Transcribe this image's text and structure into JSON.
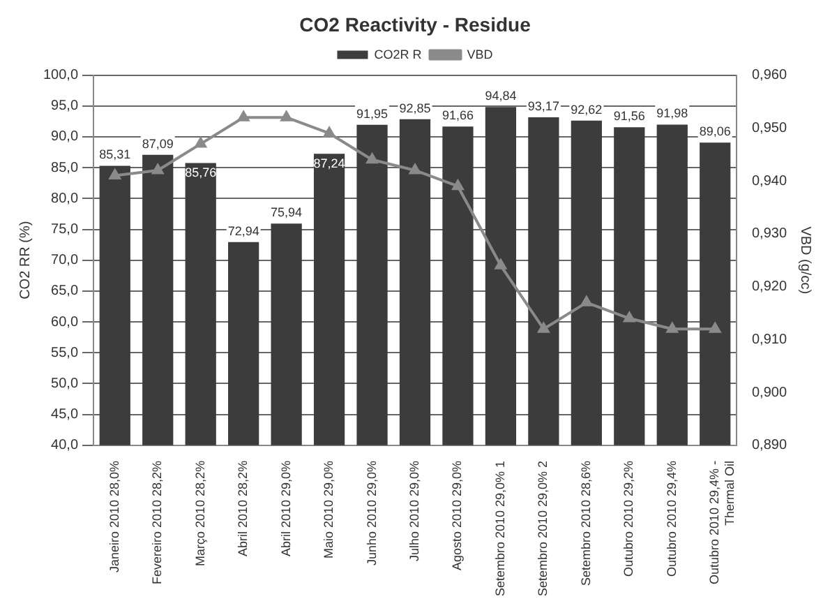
{
  "chart_data": {
    "type": "bar",
    "title": "CO2 Reactivity - Residue",
    "ylabel": "CO2 RR (%)",
    "y2label": "VBD (g/cc)",
    "categories": [
      "Janeiro 2010 28,0%",
      "Fevereiro 2010 28,2%",
      "Março 2010 28,2%",
      "Abril 2010 28,2%",
      "Abril 2010 29,0%",
      "Maio 2010 29,0%",
      "Junho 2010 29,0%",
      "Julho 2010 29,0%",
      "Agosto 2010 29,0%",
      "Setembro 2010 29,0% 1",
      "Setembro 2010 29,0% 2",
      "Setembro 2010 28,6%",
      "Outubro 2010 29,2%",
      "Outubro 2010 29,4%",
      "Outubro 2010 29,4% - Thermal Oil"
    ],
    "series": [
      {
        "name": "CO2R R",
        "color": "#3c3c3c",
        "values": [
          85.31,
          87.09,
          85.76,
          72.94,
          75.94,
          87.24,
          91.95,
          92.85,
          91.66,
          94.84,
          93.17,
          92.62,
          91.56,
          91.98,
          89.06
        ],
        "value_labels": [
          "85,31",
          "87,09",
          "85,76",
          "72,94",
          "75,94",
          "87,24",
          "91,95",
          "92,85",
          "91,66",
          "94,84",
          "93,17",
          "92,62",
          "91,56",
          "91,98",
          "89,06"
        ]
      },
      {
        "name": "VBD",
        "type": "line",
        "axis": "y2",
        "color": "#8a8a8a",
        "marker": "triangle",
        "values": [
          0.941,
          0.942,
          0.947,
          0.952,
          0.952,
          0.949,
          0.944,
          0.942,
          0.939,
          0.924,
          0.912,
          0.917,
          0.914,
          0.912,
          0.912
        ]
      }
    ],
    "ylim": [
      40,
      100
    ],
    "yticks": [
      {
        "value": 40,
        "label": "40,0"
      },
      {
        "value": 45,
        "label": "45,0"
      },
      {
        "value": 50,
        "label": "50,0"
      },
      {
        "value": 55,
        "label": "55,0"
      },
      {
        "value": 60,
        "label": "60,0"
      },
      {
        "value": 65,
        "label": "65,0"
      },
      {
        "value": 70,
        "label": "70,0"
      },
      {
        "value": 75,
        "label": "75,0"
      },
      {
        "value": 80,
        "label": "80,0"
      },
      {
        "value": 85,
        "label": "85,0"
      },
      {
        "value": 90,
        "label": "90,0"
      },
      {
        "value": 95,
        "label": "95,0"
      },
      {
        "value": 100,
        "label": "100,0"
      }
    ],
    "y2lim": [
      0.89,
      0.96
    ],
    "y2ticks": [
      {
        "value": 0.89,
        "label": "0,890"
      },
      {
        "value": 0.9,
        "label": "0,900"
      },
      {
        "value": 0.91,
        "label": "0,910"
      },
      {
        "value": 0.92,
        "label": "0,920"
      },
      {
        "value": 0.93,
        "label": "0,930"
      },
      {
        "value": 0.94,
        "label": "0,940"
      },
      {
        "value": 0.95,
        "label": "0,950"
      },
      {
        "value": 0.96,
        "label": "0,960"
      }
    ],
    "grid": "y",
    "legend": "top"
  }
}
